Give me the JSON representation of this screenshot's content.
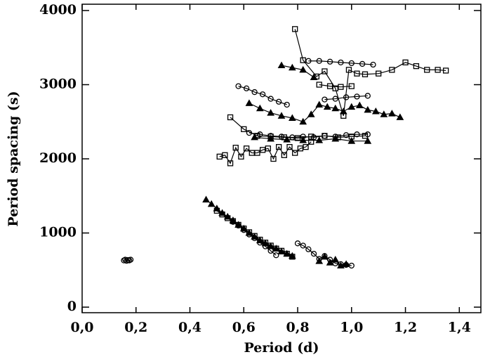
{
  "chart_data": {
    "type": "scatter",
    "x_label": "Period (d)",
    "y_label": "Period spacing (s)",
    "xlim": [
      0,
      1.48
    ],
    "ylim": [
      -75,
      4085
    ],
    "xticks": [
      {
        "value": 0,
        "label": "0,0"
      },
      {
        "value": 0.2,
        "label": "0,2"
      },
      {
        "value": 0.4,
        "label": "0,4"
      },
      {
        "value": 0.6,
        "label": "0,6"
      },
      {
        "value": 0.8,
        "label": "0,8"
      },
      {
        "value": 1.0,
        "label": "1,0"
      },
      {
        "value": 1.2,
        "label": "1,2"
      },
      {
        "value": 1.4,
        "label": "1,4"
      }
    ],
    "yticks": [
      0,
      1000,
      2000,
      3000,
      4000
    ],
    "series": [
      {
        "marker": "circle",
        "color": "#000000",
        "x": [
          0.155,
          0.16,
          0.165,
          0.17,
          0.175,
          0.18
        ],
        "values": [
          630,
          640,
          625,
          635,
          630,
          640
        ]
      },
      {
        "marker": "triangle",
        "color": "#000000",
        "x": [
          0.46,
          0.48,
          0.5,
          0.52,
          0.54,
          0.56,
          0.58,
          0.6,
          0.62,
          0.64,
          0.66,
          0.68,
          0.7,
          0.72,
          0.74,
          0.76,
          0.78
        ],
        "values": [
          1450,
          1390,
          1330,
          1270,
          1220,
          1170,
          1110,
          1060,
          1000,
          950,
          900,
          860,
          820,
          790,
          750,
          720,
          690
        ]
      },
      {
        "marker": "square",
        "color": "#000000",
        "x": [
          0.5,
          0.52,
          0.54,
          0.56,
          0.58,
          0.6,
          0.62,
          0.64,
          0.66,
          0.68,
          0.7,
          0.72,
          0.74,
          0.76,
          0.78
        ],
        "values": [
          1300,
          1250,
          1200,
          1160,
          1110,
          1060,
          1010,
          960,
          910,
          870,
          830,
          790,
          760,
          720,
          680
        ]
      },
      {
        "marker": "circle",
        "color": "#000000",
        "x": [
          0.56,
          0.58,
          0.6,
          0.62,
          0.64,
          0.66,
          0.68,
          0.7,
          0.72
        ],
        "values": [
          1150,
          1100,
          1040,
          980,
          930,
          870,
          820,
          760,
          700
        ]
      },
      {
        "marker": "circle",
        "color": "#000000",
        "x": [
          0.8,
          0.82,
          0.84,
          0.86,
          0.88,
          0.9,
          0.92,
          0.94,
          0.96,
          0.98,
          1.0
        ],
        "values": [
          860,
          830,
          780,
          720,
          650,
          690,
          640,
          590,
          580,
          570,
          560
        ]
      },
      {
        "marker": "triangle",
        "color": "#000000",
        "x": [
          0.88,
          0.9,
          0.92,
          0.94,
          0.96,
          0.98
        ],
        "values": [
          620,
          680,
          600,
          640,
          560,
          580
        ]
      },
      {
        "marker": "square",
        "color": "#000000",
        "x": [
          0.51,
          0.53,
          0.55,
          0.57,
          0.59,
          0.61,
          0.63,
          0.65,
          0.67,
          0.69,
          0.71,
          0.73,
          0.75,
          0.77,
          0.79,
          0.81,
          0.83,
          0.85
        ],
        "values": [
          2030,
          2050,
          1940,
          2150,
          2030,
          2140,
          2080,
          2080,
          2120,
          2140,
          2000,
          2160,
          2050,
          2160,
          2080,
          2140,
          2160,
          2230
        ]
      },
      {
        "marker": "square",
        "color": "#000000",
        "x": [
          0.55,
          0.6,
          0.65,
          0.7,
          0.75,
          0.8,
          0.85,
          0.9,
          0.95,
          1.0,
          1.05
        ],
        "values": [
          2560,
          2400,
          2310,
          2300,
          2290,
          2280,
          2300,
          2310,
          2290,
          2300,
          2310
        ]
      },
      {
        "marker": "circle",
        "color": "#000000",
        "x": [
          0.62,
          0.66,
          0.7,
          0.74,
          0.78,
          0.82,
          0.86,
          0.9,
          0.94,
          0.98,
          1.02,
          1.06
        ],
        "values": [
          2350,
          2330,
          2310,
          2300,
          2290,
          2300,
          2290,
          2310,
          2300,
          2320,
          2330,
          2330
        ]
      },
      {
        "marker": "triangle",
        "color": "#000000",
        "x": [
          0.64,
          0.7,
          0.76,
          0.82,
          0.88,
          0.94,
          1.0,
          1.06
        ],
        "values": [
          2290,
          2270,
          2260,
          2250,
          2250,
          2270,
          2240,
          2240
        ]
      },
      {
        "marker": "circle",
        "color": "#000000",
        "x": [
          0.58,
          0.61,
          0.64,
          0.67,
          0.7,
          0.73,
          0.76
        ],
        "values": [
          2980,
          2950,
          2900,
          2870,
          2810,
          2770,
          2730
        ]
      },
      {
        "marker": "triangle",
        "color": "#000000",
        "x": [
          0.62,
          0.66,
          0.7,
          0.74,
          0.78,
          0.82,
          0.85,
          0.88,
          0.91,
          0.94,
          0.97,
          1.0,
          1.03,
          1.06,
          1.09,
          1.12,
          1.15,
          1.18
        ],
        "values": [
          2750,
          2680,
          2620,
          2580,
          2550,
          2500,
          2600,
          2730,
          2700,
          2680,
          2640,
          2700,
          2720,
          2660,
          2640,
          2600,
          2610,
          2560
        ]
      },
      {
        "marker": "circle",
        "color": "#000000",
        "x": [
          0.9,
          0.94,
          0.98,
          1.02,
          1.06
        ],
        "values": [
          2800,
          2810,
          2830,
          2840,
          2850
        ]
      },
      {
        "marker": "square",
        "color": "#000000",
        "x": [
          0.79,
          0.82,
          0.87,
          0.9,
          0.94,
          0.97,
          0.99,
          1.02,
          1.05,
          1.1,
          1.15,
          1.2,
          1.24,
          1.28,
          1.32,
          1.35
        ],
        "values": [
          3750,
          3330,
          3110,
          3180,
          2950,
          2580,
          3200,
          3150,
          3140,
          3150,
          3200,
          3300,
          3250,
          3200,
          3200,
          3190
        ]
      },
      {
        "marker": "square",
        "color": "#000000",
        "x": [
          0.88,
          0.92,
          0.96,
          1.0
        ],
        "values": [
          3000,
          2980,
          2970,
          2980
        ]
      },
      {
        "marker": "circle",
        "color": "#000000",
        "x": [
          0.84,
          0.88,
          0.92,
          0.96,
          1.0,
          1.04,
          1.08
        ],
        "values": [
          3320,
          3320,
          3310,
          3300,
          3290,
          3280,
          3270
        ]
      },
      {
        "marker": "triangle",
        "color": "#000000",
        "x": [
          0.74,
          0.78,
          0.82,
          0.86
        ],
        "values": [
          3260,
          3230,
          3200,
          3100
        ]
      }
    ]
  }
}
